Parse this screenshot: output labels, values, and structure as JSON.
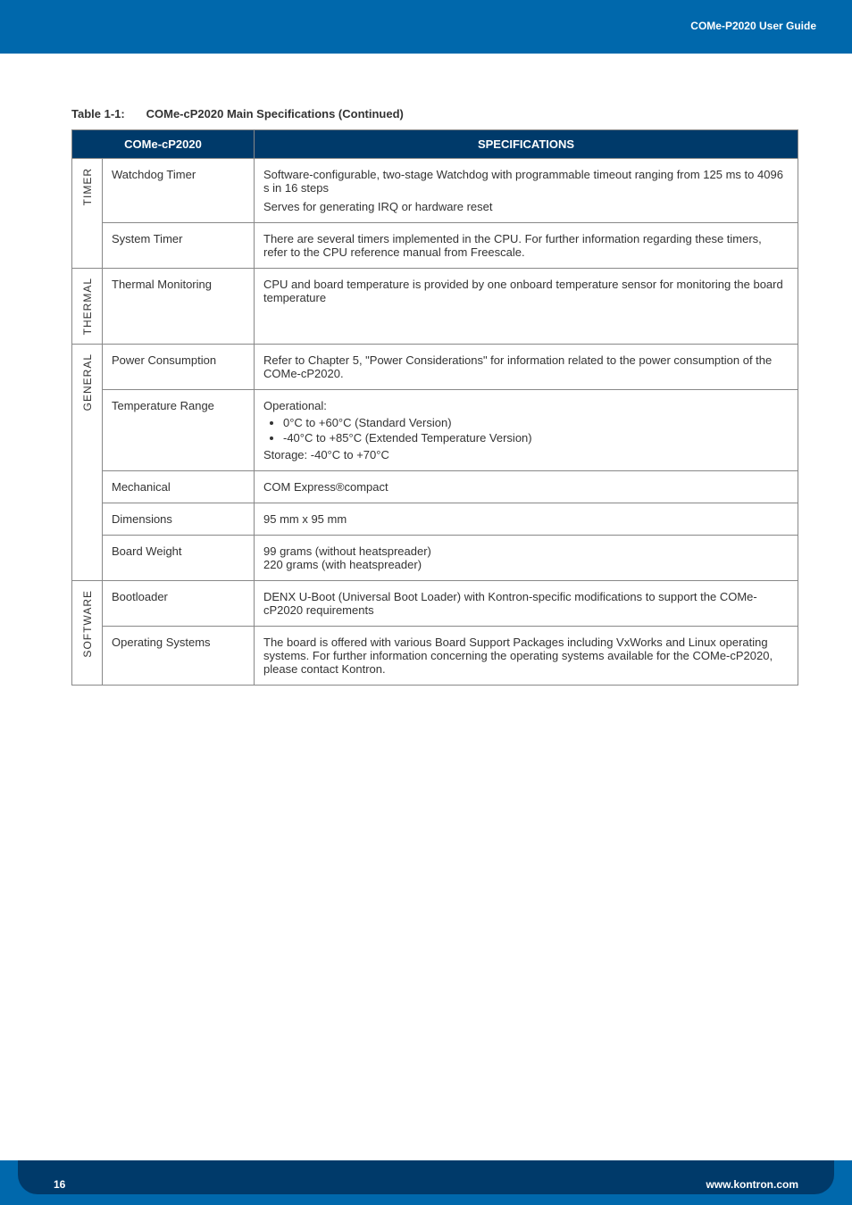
{
  "colors": {
    "banner": "#0068ac",
    "header_bg": "#003a6a",
    "border": "#888888",
    "text": "#333333",
    "white": "#ffffff"
  },
  "header": {
    "guide_label": "COMe-P2020 User Guide"
  },
  "caption": {
    "number": "Table 1-1:",
    "title": "COMe-cP2020 Main Specifications (Continued)"
  },
  "table": {
    "head": {
      "left": "COMe-cP2020",
      "right": "SPECIFICATIONS"
    },
    "categories": [
      {
        "label": "TIMER",
        "rows": [
          {
            "name": "Watchdog Timer",
            "desc_lines": [
              "Software-configurable, two-stage Watchdog with programmable timeout ranging from 125 ms to 4096 s in 16 steps",
              "Serves for generating IRQ or hardware reset"
            ]
          },
          {
            "name": "System Timer",
            "desc_lines": [
              "There are several timers implemented in the CPU. For further information regarding these timers, refer to the CPU reference manual from Freescale."
            ]
          }
        ]
      },
      {
        "label": "THERMAL",
        "rows": [
          {
            "name": "Thermal Monitoring",
            "desc_lines": [
              "CPU and board temperature is provided by one onboard temperature sensor for monitoring the board temperature"
            ]
          }
        ]
      },
      {
        "label": "GENERAL",
        "rows": [
          {
            "name": "Power Consumption",
            "desc_lines": [
              "Refer to Chapter 5, \"Power Considerations\" for information related to the power consumption of the COMe-cP2020."
            ]
          },
          {
            "name": "Temperature Range",
            "op_label": "Operational:",
            "bullets": [
              "0°C to +60°C (Standard Version)",
              "-40°C  to  +85°C (Extended Temperature Version)"
            ],
            "storage": "Storage: -40°C to +70°C"
          },
          {
            "name": "Mechanical",
            "desc_lines": [
              "COM Express®compact"
            ]
          },
          {
            "name": "Dimensions",
            "desc_lines": [
              "95 mm x 95 mm"
            ]
          },
          {
            "name": "Board Weight",
            "desc_lines": [
              "99 grams (without heatspreader)",
              "220 grams (with heatspreader)"
            ]
          }
        ]
      },
      {
        "label": "SOFTWARE",
        "rows": [
          {
            "name": "Bootloader",
            "desc_lines": [
              "DENX U-Boot (Universal Boot Loader) with Kontron-specific modifications to support the COMe-cP2020 requirements"
            ]
          },
          {
            "name": "Operating Systems",
            "desc_lines": [
              "The board is offered with various Board Support Packages including VxWorks and Linux operating systems. For further information concerning the operating systems available for the COMe-cP2020, please contact Kontron."
            ]
          }
        ]
      }
    ]
  },
  "footer": {
    "page": "16",
    "site": "www.kontron.com"
  }
}
